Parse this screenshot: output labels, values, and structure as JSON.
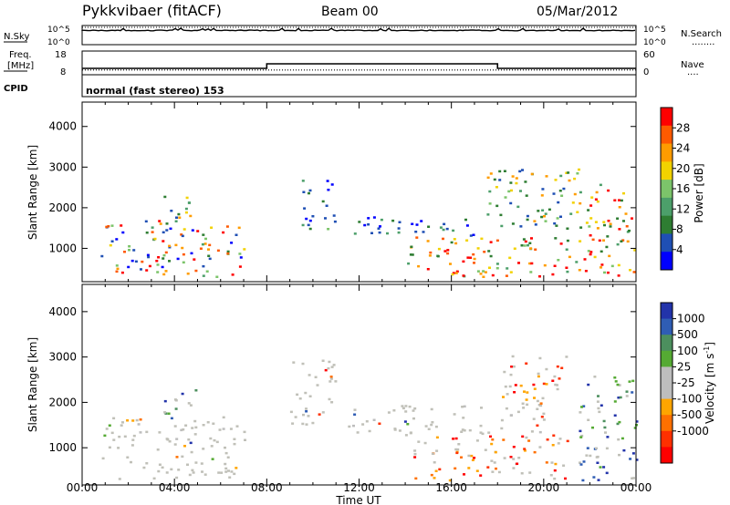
{
  "header": {
    "station": "Pykkvibaer (fitACF)",
    "beam": "Beam 00",
    "date": "05/Mar/2012"
  },
  "nsky_panel": {
    "left_label": "N.Sky",
    "right_label": "N.Search",
    "right_legend_dots": "........",
    "left_ticks": [
      "10^5",
      "10^0"
    ],
    "right_ticks": [
      "10^5",
      "10^0"
    ]
  },
  "freq_panel": {
    "left_label_line1": "Freq.",
    "left_label_line2": "[MHz]",
    "right_label": "Nave",
    "right_legend_dots": "....",
    "left_ticks": [
      "18",
      "8"
    ],
    "right_ticks": [
      "60",
      "0"
    ],
    "freq_steps_time_h": [
      0,
      8.0,
      18.0,
      24
    ],
    "nave_level": 12
  },
  "cpid_panel": {
    "left_label": "CPID",
    "text": "normal (fast stereo) 153"
  },
  "colors": {
    "power": [
      "#0000ff",
      "#1f4fb4",
      "#2e7d32",
      "#4c9f6a",
      "#7cc46a",
      "#f2d200",
      "#ff9c00",
      "#ff5a00",
      "#ff0000"
    ],
    "velocity": [
      "#2233aa",
      "#2f5db4",
      "#4c8f5e",
      "#55aa33",
      "#bdbdbd",
      "#bdbdbd",
      "#ffa500",
      "#ff7000",
      "#ff3000",
      "#ff0000"
    ],
    "ground_scatter": "#c0c0b8"
  },
  "chart_data": [
    {
      "type": "heatmap",
      "title": "",
      "ylabel": "Slant Range [km]",
      "xlabel": "",
      "xlim": [
        0,
        24
      ],
      "ylim": [
        180,
        4600
      ],
      "yticks": [
        "1000",
        "2000",
        "3000",
        "4000"
      ],
      "colorbar": {
        "label": "Power [dB]",
        "range": [
          0,
          32
        ],
        "ticks": [
          "4",
          "8",
          "12",
          "16",
          "20",
          "24",
          "28"
        ]
      },
      "echo_regions": [
        {
          "t0": 0.8,
          "t1": 7.0,
          "r0": 300,
          "r1": 1700,
          "level": "mixed"
        },
        {
          "t0": 3.5,
          "t1": 5.0,
          "r0": 1600,
          "r1": 2300,
          "level": "mid"
        },
        {
          "t0": 9.5,
          "t1": 11.0,
          "r0": 1500,
          "r1": 2700,
          "level": "low-mid"
        },
        {
          "t0": 11.5,
          "t1": 17.0,
          "r0": 1300,
          "r1": 1800,
          "level": "low"
        },
        {
          "t0": 14.0,
          "t1": 21.5,
          "r0": 300,
          "r1": 1300,
          "level": "high"
        },
        {
          "t0": 17.5,
          "t1": 21.5,
          "r0": 1500,
          "r1": 3000,
          "level": "mid"
        },
        {
          "t0": 21.5,
          "t1": 24.0,
          "r0": 300,
          "r1": 2600,
          "level": "high"
        }
      ]
    },
    {
      "type": "heatmap",
      "title": "",
      "ylabel": "Slant Range [km]",
      "xlabel": "Time UT",
      "xlim": [
        0,
        24
      ],
      "ylim": [
        180,
        4600
      ],
      "yticks": [
        "1000",
        "2000",
        "3000",
        "4000"
      ],
      "xticks": [
        "00:00",
        "04:00",
        "08:00",
        "12:00",
        "16:00",
        "20:00",
        "00:00"
      ],
      "colorbar": {
        "label": "Velocity [m s",
        "label_sup": "-1",
        "label_end": "]",
        "ticks": [
          "1000",
          "500",
          "100",
          "25",
          "-25",
          "-100",
          "-500",
          "-1000"
        ]
      },
      "echo_regions": [
        {
          "t0": 0.8,
          "t1": 7.0,
          "r0": 300,
          "r1": 1700,
          "level": "ground"
        },
        {
          "t0": 3.5,
          "t1": 5.0,
          "r0": 1600,
          "r1": 2300,
          "level": "toward"
        },
        {
          "t0": 9.0,
          "t1": 11.0,
          "r0": 1500,
          "r1": 3000,
          "level": "ground"
        },
        {
          "t0": 11.5,
          "t1": 20.0,
          "r0": 1300,
          "r1": 2000,
          "level": "ground"
        },
        {
          "t0": 14.0,
          "t1": 21.0,
          "r0": 300,
          "r1": 1300,
          "level": "away"
        },
        {
          "t0": 18.0,
          "t1": 21.0,
          "r0": 2000,
          "r1": 3100,
          "level": "away"
        },
        {
          "t0": 21.5,
          "t1": 24.0,
          "r0": 300,
          "r1": 2600,
          "level": "toward"
        }
      ]
    }
  ]
}
